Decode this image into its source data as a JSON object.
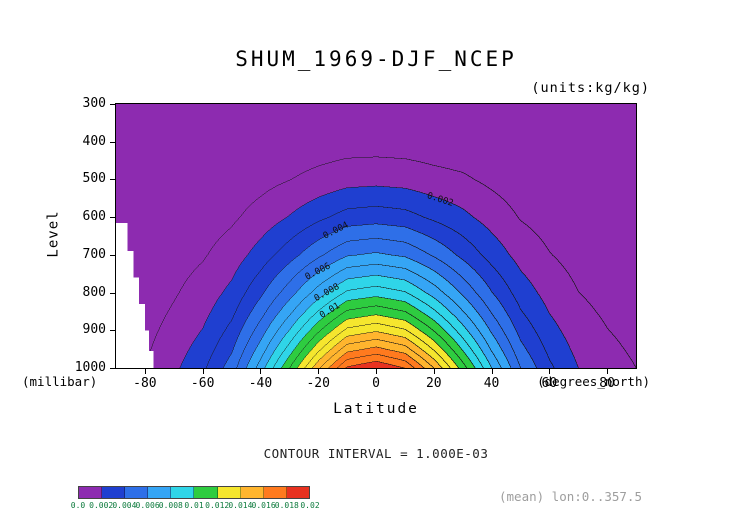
{
  "title": "SHUM_1969-DJF_NCEP",
  "units_label": "(units:kg/kg)",
  "axes": {
    "y_label": "Level",
    "y_unit_label": "(millibar)",
    "y_tick_values": [
      300,
      400,
      500,
      600,
      700,
      800,
      900,
      1000
    ],
    "y_tick_labels": [
      "300",
      "400",
      "500",
      "600",
      "700",
      "800",
      "900",
      "1000"
    ],
    "x_label": "Latitude",
    "x_unit_label": "(degrees_north)",
    "x_tick_values": [
      -80,
      -60,
      -40,
      -20,
      0,
      20,
      40,
      60,
      80
    ],
    "x_tick_labels": [
      "-80",
      "-60",
      "-40",
      "-20",
      "0",
      "20",
      "40",
      "60",
      "80"
    ]
  },
  "footer": {
    "contour_interval": "CONTOUR INTERVAL = 1.000E-03",
    "mean_note": "(mean) lon:0..357.5"
  },
  "colorbar": {
    "labels": [
      "0.0",
      "0.002",
      "0.004",
      "0.006",
      "0.008",
      "0.01",
      "0.012",
      "0.014",
      "0.016",
      "0.018",
      "0.02"
    ],
    "colors": [
      "#8d2bb0",
      "#1f3fd0",
      "#2e6fe8",
      "#35a5f5",
      "#2fd5e8",
      "#2ecc40",
      "#f5e62e",
      "#ffb52e",
      "#ff7a1e",
      "#e83220"
    ]
  },
  "chart_data": {
    "type": "heatmap",
    "style": "filled-contour",
    "title": "SHUM_1969-DJF_NCEP",
    "xlabel": "Latitude (degrees_north)",
    "ylabel": "Level (millibar)",
    "value_units": "kg/kg",
    "value_scale": 0.001,
    "fill_band_interval": 2,
    "line_interval": 1,
    "x_range": [
      -90,
      90
    ],
    "y_range": [
      300,
      1000
    ],
    "x": [
      -90,
      -80,
      -70,
      -60,
      -50,
      -40,
      -30,
      -20,
      -10,
      0,
      10,
      20,
      30,
      40,
      50,
      60,
      70,
      80,
      90
    ],
    "y": [
      300,
      400,
      500,
      600,
      700,
      800,
      850,
      900,
      950,
      1000
    ],
    "values": [
      [
        0.0,
        0.0,
        0.0,
        0.01,
        0.01,
        0.02,
        0.03,
        0.04,
        0.05,
        0.05,
        0.05,
        0.04,
        0.03,
        0.02,
        0.01,
        0.01,
        0.01,
        0.0,
        0.0
      ],
      [
        0.01,
        0.03,
        0.05,
        0.08,
        0.13,
        0.22,
        0.32,
        0.43,
        0.53,
        0.55,
        0.52,
        0.44,
        0.36,
        0.23,
        0.15,
        0.09,
        0.06,
        0.04,
        0.03
      ],
      [
        0.04,
        0.09,
        0.16,
        0.25,
        0.4,
        0.67,
        0.98,
        1.32,
        1.62,
        1.69,
        1.6,
        1.34,
        1.15,
        0.78,
        0.45,
        0.29,
        0.18,
        0.12,
        0.09
      ],
      [
        0.09,
        0.19,
        0.34,
        0.52,
        0.84,
        1.4,
        2.06,
        2.77,
        3.4,
        3.55,
        3.37,
        2.81,
        2.25,
        1.58,
        0.94,
        0.6,
        0.37,
        0.26,
        0.19
      ],
      [
        0.16,
        0.33,
        0.59,
        0.91,
        1.46,
        2.44,
        3.58,
        4.81,
        5.92,
        6.18,
        5.85,
        4.88,
        3.74,
        2.6,
        1.63,
        1.04,
        0.65,
        0.46,
        0.33
      ],
      [
        0.25,
        0.51,
        0.91,
        1.42,
        2.27,
        3.79,
        5.56,
        7.48,
        9.2,
        9.6,
        9.1,
        7.58,
        5.81,
        4.04,
        2.53,
        1.62,
        1.01,
        0.71,
        0.51
      ],
      [
        0.31,
        0.61,
        1.1,
        1.71,
        2.75,
        4.59,
        6.73,
        9.06,
        11.14,
        11.63,
        11.02,
        9.18,
        7.04,
        4.9,
        3.06,
        1.96,
        1.22,
        0.86,
        0.61
      ],
      [
        0.37,
        0.73,
        1.31,
        2.04,
        3.29,
        5.48,
        8.03,
        10.8,
        13.29,
        13.87,
        13.14,
        10.95,
        8.4,
        5.84,
        3.65,
        2.34,
        1.46,
        1.02,
        0.73
      ],
      [
        0.43,
        0.86,
        1.55,
        2.41,
        3.87,
        6.44,
        9.45,
        12.72,
        15.64,
        16.32,
        15.47,
        12.89,
        9.88,
        6.87,
        4.3,
        2.75,
        1.72,
        1.2,
        0.86
      ],
      [
        0.5,
        1.0,
        1.8,
        2.8,
        4.5,
        7.5,
        11.0,
        14.8,
        18.2,
        19.0,
        18.0,
        15.0,
        11.5,
        8.0,
        5.0,
        3.2,
        2.0,
        1.4,
        1.0
      ]
    ],
    "mask_steps": [
      {
        "lat_max": -86.0,
        "p_min": 615
      },
      {
        "lat_max": -84.0,
        "p_min": 690
      },
      {
        "lat_max": -82.0,
        "p_min": 760
      },
      {
        "lat_max": -80.0,
        "p_min": 830
      },
      {
        "lat_max": -78.5,
        "p_min": 900
      },
      {
        "lat_max": -77.0,
        "p_min": 955
      }
    ],
    "contour_labels": [
      {
        "text": "0.002",
        "lat": 22,
        "p": 555,
        "angle": 18
      },
      {
        "text": "0.004",
        "lat": -14,
        "p": 636,
        "angle": -27
      },
      {
        "text": "0.006",
        "lat": -20,
        "p": 745,
        "angle": -27
      },
      {
        "text": "0.008",
        "lat": -17,
        "p": 800,
        "angle": -29
      },
      {
        "text": "0.01",
        "lat": -16,
        "p": 850,
        "angle": -31
      }
    ]
  }
}
